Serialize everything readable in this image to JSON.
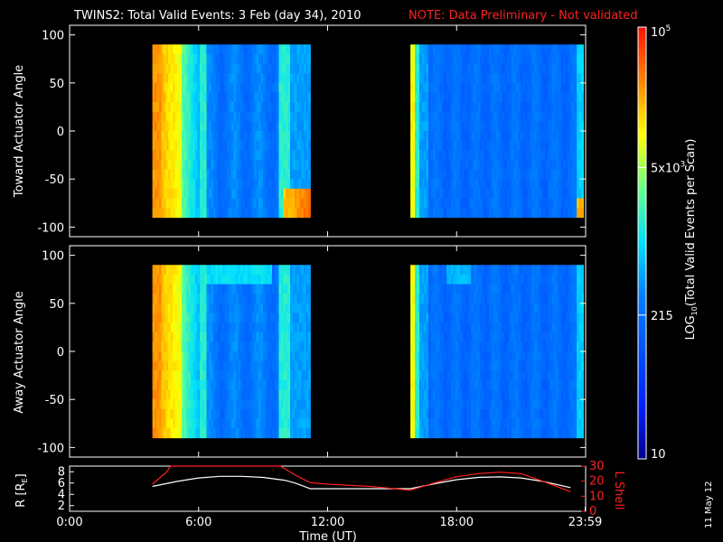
{
  "header": {
    "title": "TWINS2: Total Valid Events:  3 Feb (day  34), 2010",
    "note": "NOTE: Data Preliminary - Not validated"
  },
  "date_stamp": "11 May 12",
  "colorbar": {
    "label": "LOG10(Total Valid Events per Scan)",
    "label_main": "LOG",
    "label_sub": "10",
    "label_rest": "(Total Valid Events per Scan)",
    "ticks": [
      {
        "label": "10",
        "value": 10
      },
      {
        "label": "215",
        "value": 215
      },
      {
        "label": "5x10",
        "sup": "3",
        "value": 5000
      },
      {
        "label": "10",
        "sup": "5",
        "value": 100000
      }
    ],
    "range": [
      10,
      100000
    ],
    "scale": "log"
  },
  "chart_data": [
    {
      "type": "heatmap",
      "ylabel": "Toward Actuator Angle",
      "ylim": [
        -110,
        110
      ],
      "yticks": [
        "100",
        "50",
        "0",
        "-50",
        "-100"
      ],
      "ytick_values": [
        100,
        50,
        0,
        -50,
        -100
      ],
      "xlim_hours": [
        0,
        24
      ],
      "data_intervals_hours": [
        [
          3.85,
          11.2
        ],
        [
          15.85,
          23.9
        ]
      ],
      "angle_range": [
        -90,
        90
      ],
      "color_profile": "high (orange/yellow) at start of each interval, cyan stripes, mostly blue; red patch at low angles near end of each interval"
    },
    {
      "type": "heatmap",
      "ylabel": "Away Actuator Angle",
      "ylim": [
        -110,
        110
      ],
      "yticks": [
        "100",
        "50",
        "0",
        "-50",
        "-100"
      ],
      "ytick_values": [
        100,
        50,
        0,
        -50,
        -100
      ],
      "xlim_hours": [
        0,
        24
      ],
      "data_intervals_hours": [
        [
          3.85,
          11.2
        ],
        [
          15.85,
          23.9
        ]
      ],
      "angle_range": [
        -90,
        90
      ],
      "color_profile": "high (orange/yellow) at start of first interval, cyan band near top, mostly blue"
    },
    {
      "type": "line",
      "ylabel": "R [RE]",
      "ylabel_main": "R [R",
      "ylabel_sub": "E",
      "ylabel_end": "]",
      "ylim": [
        1,
        9
      ],
      "yticks": [
        "8",
        "6",
        "4",
        "2"
      ],
      "ytick_values": [
        8,
        6,
        4,
        2
      ],
      "y2label": "L Shell",
      "y2lim": [
        0,
        30
      ],
      "y2ticks": [
        "30",
        "20",
        "10",
        "0"
      ],
      "y2tick_values": [
        30,
        20,
        10,
        0
      ],
      "xlabel": "Time (UT)",
      "xticks": [
        "0:00",
        "6:00",
        "12:00",
        "18:00",
        "23:59"
      ],
      "xtick_values": [
        0,
        6,
        12,
        18,
        23.98
      ],
      "series": [
        {
          "name": "R",
          "color": "#ffffff",
          "x": [
            3.85,
            5,
            6,
            7,
            8,
            9,
            10,
            10.5,
            11.2,
            12,
            14,
            15.85,
            17,
            18,
            19,
            20,
            21,
            22,
            23.3
          ],
          "y": [
            5.4,
            6.3,
            6.9,
            7.2,
            7.2,
            7.0,
            6.5,
            6.0,
            5.0,
            5.0,
            5.0,
            5.0,
            5.9,
            6.6,
            7.0,
            7.1,
            6.9,
            6.3,
            5.2
          ]
        },
        {
          "name": "L Shell",
          "color": "#ff2020",
          "x": [
            3.85,
            4.5,
            4.7,
            9.8,
            10.5,
            11.2,
            12,
            14,
            15.85,
            17,
            18,
            19,
            20,
            21,
            22,
            23.3
          ],
          "y": [
            18,
            26,
            30,
            30,
            24,
            19,
            18,
            16.5,
            14,
            19,
            23,
            25,
            26,
            25,
            20,
            13
          ]
        }
      ]
    }
  ]
}
